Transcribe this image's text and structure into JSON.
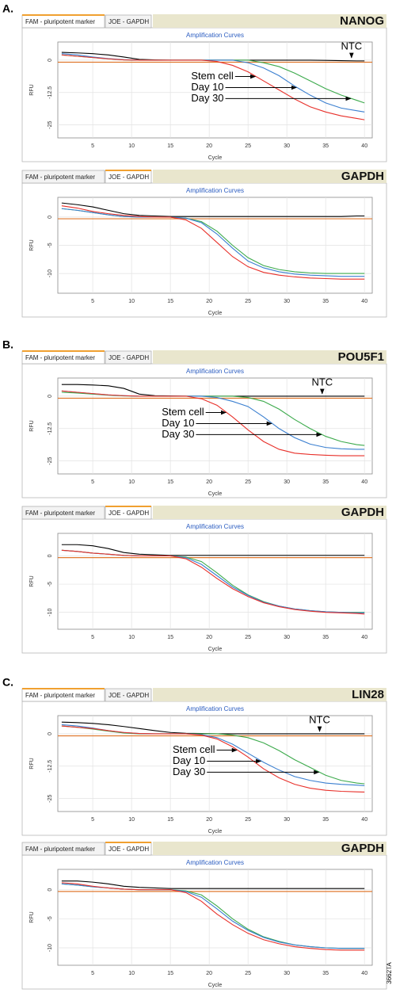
{
  "figure_code": "3662TA",
  "chart_data": [
    {
      "type": "line",
      "panel_label": "A.",
      "tabs": [
        "FAM - pluripotent marker",
        "JOE - GAPDH"
      ],
      "active_tab": 0,
      "gene": "NANOG",
      "title": "Amplification Curves",
      "x_label": "Cycle",
      "y_label": "RFU",
      "x": [
        1,
        3,
        5,
        7,
        9,
        11,
        13,
        15,
        17,
        19,
        21,
        23,
        25,
        27,
        29,
        31,
        33,
        35,
        37,
        39,
        40
      ],
      "xlim": [
        0.5,
        41
      ],
      "xticks": [
        5,
        10,
        15,
        20,
        25,
        30,
        35,
        40
      ],
      "ylim": [
        -30,
        7
      ],
      "yticks": [
        0,
        -12.5,
        -25
      ],
      "grid": true,
      "threshold": -0.8,
      "threshold_color": "#e07a30",
      "series": [
        {
          "name": "Stem cell",
          "color": "#e8302a",
          "values": [
            2,
            1.5,
            1,
            0.5,
            0.1,
            0,
            0,
            0,
            0,
            0,
            -0.5,
            -2,
            -4.5,
            -8,
            -11.5,
            -15,
            -18,
            -20,
            -21.5,
            -22.5,
            -23
          ]
        },
        {
          "name": "Day 10",
          "color": "#3a7fd0",
          "values": [
            2.5,
            2,
            1.2,
            0.6,
            0.2,
            0,
            0,
            0,
            0,
            0,
            0,
            0,
            -1,
            -3,
            -6,
            -10,
            -13.5,
            -16.5,
            -18.5,
            -19.5,
            -20
          ]
        },
        {
          "name": "Day 30",
          "color": "#3caa4c",
          "values": [
            2,
            1.5,
            1,
            0.5,
            0.1,
            0,
            0,
            0,
            0,
            0,
            0,
            0,
            0,
            -1,
            -2.5,
            -5,
            -8,
            -11,
            -13.5,
            -15.5,
            -16.5
          ]
        },
        {
          "name": "NTC",
          "color": "#000000",
          "values": [
            3,
            2.8,
            2.5,
            2,
            1.2,
            0.3,
            0.1,
            0,
            0,
            0,
            0,
            0,
            0,
            0,
            0,
            0,
            0,
            -0.1,
            -0.2,
            -0.3,
            -0.3
          ]
        }
      ]
    },
    {
      "type": "line",
      "tabs": [
        "FAM - pluripotent marker",
        "JOE - GAPDH"
      ],
      "active_tab": 1,
      "gene": "GAPDH",
      "title": "Amplification Curves",
      "x_label": "Cycle",
      "y_label": "RFU",
      "x": [
        1,
        3,
        5,
        7,
        9,
        11,
        13,
        15,
        17,
        19,
        21,
        23,
        25,
        27,
        29,
        31,
        33,
        35,
        37,
        39,
        40
      ],
      "xlim": [
        0.5,
        41
      ],
      "xticks": [
        5,
        10,
        15,
        20,
        25,
        30,
        35,
        40
      ],
      "ylim": [
        -13.5,
        3.5
      ],
      "yticks": [
        0,
        -5,
        -10
      ],
      "grid": true,
      "threshold": -0.3,
      "threshold_color": "#e07a30",
      "series": [
        {
          "color": "#e8302a",
          "values": [
            2,
            1.6,
            1,
            0.6,
            0.3,
            0.1,
            0,
            0,
            -0.5,
            -2,
            -4.5,
            -7,
            -8.8,
            -9.8,
            -10.3,
            -10.6,
            -10.8,
            -10.9,
            -11,
            -11,
            -11
          ]
        },
        {
          "color": "#3a7fd0",
          "values": [
            1.5,
            1.2,
            0.8,
            0.4,
            0.1,
            0,
            0,
            0,
            -0.2,
            -1,
            -3,
            -5.5,
            -7.8,
            -9,
            -9.7,
            -10.1,
            -10.3,
            -10.4,
            -10.5,
            -10.5,
            -10.5
          ]
        },
        {
          "color": "#3caa4c",
          "values": [
            1.5,
            1.2,
            0.8,
            0.4,
            0.1,
            0,
            0,
            0,
            -0.2,
            -0.8,
            -2.5,
            -5,
            -7.2,
            -8.6,
            -9.3,
            -9.7,
            -9.9,
            -10,
            -10,
            -10,
            -10
          ]
        },
        {
          "color": "#000000",
          "values": [
            2.5,
            2.2,
            1.8,
            1.2,
            0.6,
            0.3,
            0.2,
            0.1,
            0.1,
            0.1,
            0.1,
            0.1,
            0.1,
            0.1,
            0.1,
            0.1,
            0.1,
            0.1,
            0.1,
            0.2,
            0.2
          ]
        }
      ]
    },
    {
      "type": "line",
      "panel_label": "B.",
      "tabs": [
        "FAM - pluripotent marker",
        "JOE - GAPDH"
      ],
      "active_tab": 0,
      "gene": "POU5F1",
      "title": "Amplification Curves",
      "x_label": "Cycle",
      "y_label": "RFU",
      "x": [
        1,
        3,
        5,
        7,
        9,
        11,
        13,
        15,
        17,
        19,
        21,
        23,
        25,
        27,
        29,
        31,
        33,
        35,
        37,
        39,
        40
      ],
      "xlim": [
        0.5,
        41
      ],
      "xticks": [
        5,
        10,
        15,
        20,
        25,
        30,
        35,
        40
      ],
      "ylim": [
        -30,
        7
      ],
      "yticks": [
        0,
        -12.5,
        -25
      ],
      "grid": true,
      "threshold": -0.8,
      "threshold_color": "#e07a30",
      "series": [
        {
          "name": "Stem cell",
          "color": "#e8302a",
          "values": [
            2,
            1.5,
            1,
            0.5,
            0.2,
            0,
            0,
            0,
            0,
            -1,
            -3.5,
            -8,
            -13,
            -17.5,
            -20.5,
            -22,
            -22.5,
            -22.8,
            -23,
            -23,
            -23
          ]
        },
        {
          "name": "Day 10",
          "color": "#3a7fd0",
          "values": [
            2,
            1.5,
            1,
            0.5,
            0.2,
            0,
            0,
            0,
            0,
            0,
            -0.5,
            -2,
            -4,
            -8,
            -12.5,
            -16,
            -18.5,
            -19.8,
            -20.3,
            -20.5,
            -20.5
          ]
        },
        {
          "name": "Day 30",
          "color": "#3caa4c",
          "values": [
            1.5,
            1.2,
            0.8,
            0.4,
            0.1,
            0,
            0,
            0,
            0,
            0,
            0,
            0,
            -0.5,
            -2,
            -5,
            -9,
            -12.5,
            -15.5,
            -17.5,
            -18.7,
            -19
          ]
        },
        {
          "name": "NTC",
          "color": "#000000",
          "values": [
            4.5,
            4.5,
            4.3,
            4,
            3,
            0.8,
            0.2,
            0.1,
            0,
            0,
            0,
            0,
            0,
            0,
            0,
            0,
            0,
            0,
            0,
            0,
            0
          ]
        }
      ]
    },
    {
      "type": "line",
      "tabs": [
        "FAM - pluripotent marker",
        "JOE - GAPDH"
      ],
      "active_tab": 1,
      "gene": "GAPDH",
      "title": "Amplification Curves",
      "x_label": "Cycle",
      "y_label": "RFU",
      "x": [
        1,
        3,
        5,
        7,
        9,
        11,
        13,
        15,
        17,
        19,
        21,
        23,
        25,
        27,
        29,
        31,
        33,
        35,
        37,
        39,
        40
      ],
      "xlim": [
        0.5,
        41
      ],
      "xticks": [
        5,
        10,
        15,
        20,
        25,
        30,
        35,
        40
      ],
      "ylim": [
        -13,
        4
      ],
      "yticks": [
        0,
        -5,
        -10
      ],
      "grid": true,
      "threshold": -0.3,
      "threshold_color": "#e07a30",
      "series": [
        {
          "color": "#e8302a",
          "values": [
            1,
            0.8,
            0.5,
            0.3,
            0.1,
            0,
            0,
            0,
            -0.5,
            -2,
            -4,
            -5.8,
            -7.2,
            -8.3,
            -9,
            -9.5,
            -9.8,
            -10,
            -10.1,
            -10.2,
            -10.3
          ]
        },
        {
          "color": "#3a7fd0",
          "values": [
            1,
            0.8,
            0.5,
            0.3,
            0.1,
            0,
            0,
            0,
            -0.3,
            -1.5,
            -3.5,
            -5.5,
            -7,
            -8.2,
            -8.9,
            -9.4,
            -9.7,
            -9.9,
            -10,
            -10.1,
            -10.1
          ]
        },
        {
          "color": "#3caa4c",
          "values": [
            1,
            0.8,
            0.5,
            0.3,
            0.1,
            0,
            0,
            0,
            -0.2,
            -1,
            -3,
            -5.2,
            -6.9,
            -8.1,
            -8.9,
            -9.4,
            -9.7,
            -9.9,
            -10,
            -10,
            -10
          ]
        },
        {
          "color": "#000000",
          "values": [
            2,
            2,
            1.8,
            1.3,
            0.6,
            0.3,
            0.2,
            0.1,
            0.1,
            0.1,
            0.1,
            0.1,
            0.1,
            0.1,
            0.1,
            0.1,
            0.1,
            0.1,
            0.1,
            0.1,
            0.1
          ]
        }
      ]
    },
    {
      "type": "line",
      "panel_label": "C.",
      "tabs": [
        "FAM - pluripotent marker",
        "JOE - GAPDH"
      ],
      "active_tab": 0,
      "gene": "LIN28",
      "title": "Amplification Curves",
      "x_label": "Cycle",
      "y_label": "RFU",
      "x": [
        1,
        3,
        5,
        7,
        9,
        11,
        13,
        15,
        17,
        19,
        21,
        23,
        25,
        27,
        29,
        31,
        33,
        35,
        37,
        39,
        40
      ],
      "xlim": [
        0.5,
        41
      ],
      "xticks": [
        5,
        10,
        15,
        20,
        25,
        30,
        35,
        40
      ],
      "ylim": [
        -30,
        7
      ],
      "yticks": [
        0,
        -12.5,
        -25
      ],
      "grid": true,
      "threshold": -0.8,
      "threshold_color": "#e07a30",
      "series": [
        {
          "name": "Stem cell",
          "color": "#e8302a",
          "values": [
            3,
            2.5,
            2,
            1.2,
            0.5,
            0.1,
            0,
            0,
            0,
            -0.5,
            -2,
            -5,
            -9,
            -13.5,
            -17,
            -19.5,
            -21,
            -21.8,
            -22.2,
            -22.4,
            -22.5
          ]
        },
        {
          "name": "Day 10",
          "color": "#3a7fd0",
          "values": [
            3.5,
            3,
            2.2,
            1.2,
            0.5,
            0.1,
            0,
            0,
            0,
            -0.3,
            -1.5,
            -4,
            -7.5,
            -11,
            -14,
            -16.5,
            -18,
            -19,
            -19.5,
            -19.8,
            -20
          ]
        },
        {
          "name": "Day 30",
          "color": "#3caa4c",
          "values": [
            3,
            2.5,
            1.8,
            1,
            0.3,
            0,
            0,
            0,
            0,
            0,
            0,
            -0.5,
            -1.5,
            -3.5,
            -6.5,
            -10,
            -13,
            -16,
            -18,
            -19,
            -19.3
          ]
        },
        {
          "name": "NTC",
          "color": "#000000",
          "values": [
            4.5,
            4.3,
            4,
            3.5,
            2.8,
            2,
            1.2,
            0.5,
            0.2,
            0.1,
            0,
            0,
            0,
            0,
            0,
            0,
            0,
            0,
            0,
            0,
            0
          ]
        }
      ]
    },
    {
      "type": "line",
      "tabs": [
        "FAM - pluripotent marker",
        "JOE - GAPDH"
      ],
      "active_tab": 1,
      "gene": "GAPDH",
      "title": "Amplification Curves",
      "x_label": "Cycle",
      "y_label": "RFU",
      "x": [
        1,
        3,
        5,
        7,
        9,
        11,
        13,
        15,
        17,
        19,
        21,
        23,
        25,
        27,
        29,
        31,
        33,
        35,
        37,
        39,
        40
      ],
      "xlim": [
        0.5,
        41
      ],
      "xticks": [
        5,
        10,
        15,
        20,
        25,
        30,
        35,
        40
      ],
      "ylim": [
        -13,
        3.5
      ],
      "yticks": [
        0,
        -5,
        -10
      ],
      "grid": true,
      "threshold": -0.3,
      "threshold_color": "#e07a30",
      "series": [
        {
          "color": "#e8302a",
          "values": [
            1.2,
            1,
            0.6,
            0.3,
            0.1,
            0,
            0,
            0,
            -0.5,
            -2,
            -4.2,
            -6,
            -7.5,
            -8.6,
            -9.3,
            -9.8,
            -10.1,
            -10.3,
            -10.4,
            -10.4,
            -10.4
          ]
        },
        {
          "color": "#3a7fd0",
          "values": [
            1,
            0.8,
            0.5,
            0.3,
            0.1,
            0,
            0,
            0,
            -0.3,
            -1.3,
            -3.3,
            -5.4,
            -7,
            -8.2,
            -9,
            -9.5,
            -9.8,
            -10,
            -10.1,
            -10.1,
            -10.1
          ]
        },
        {
          "color": "#3caa4c",
          "values": [
            1,
            0.8,
            0.5,
            0.3,
            0.1,
            0,
            0,
            0,
            -0.2,
            -0.9,
            -2.8,
            -5,
            -6.8,
            -8.1,
            -8.9,
            -9.5,
            -9.8,
            -10,
            -10.1,
            -10.1,
            -10.1
          ]
        },
        {
          "color": "#000000",
          "values": [
            1.5,
            1.5,
            1.3,
            1,
            0.6,
            0.4,
            0.3,
            0.2,
            0.2,
            0.2,
            0.2,
            0.2,
            0.2,
            0.2,
            0.2,
            0.2,
            0.2,
            0.2,
            0.2,
            0.2,
            0.2
          ]
        }
      ]
    }
  ]
}
